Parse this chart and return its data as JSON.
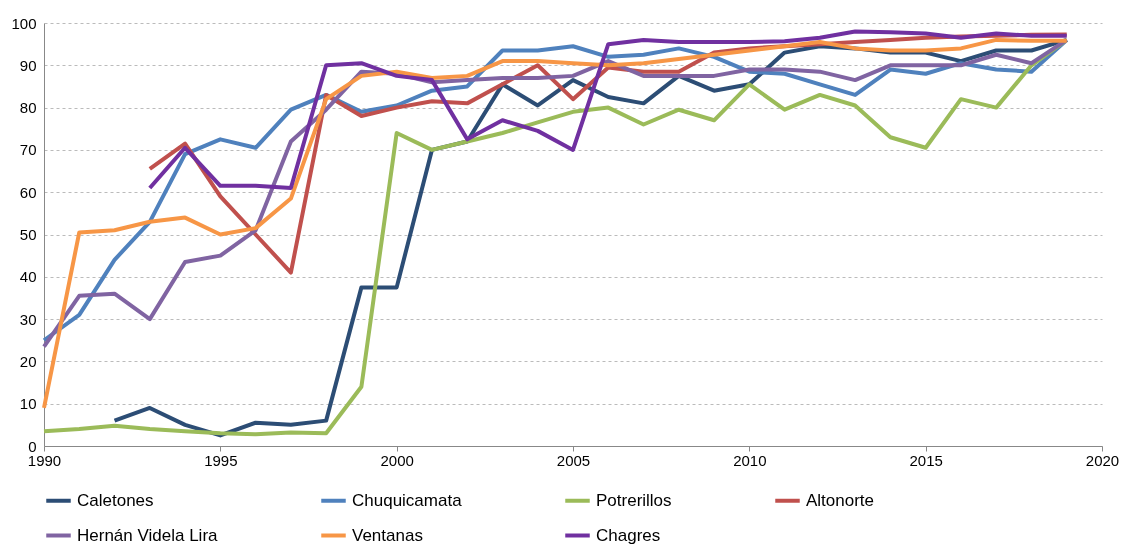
{
  "chart_data": {
    "type": "line",
    "x": [
      1990,
      1991,
      1992,
      1993,
      1994,
      1995,
      1996,
      1997,
      1998,
      1999,
      2000,
      2001,
      2002,
      2003,
      2004,
      2005,
      2006,
      2007,
      2008,
      2009,
      2010,
      2011,
      2012,
      2013,
      2014,
      2015,
      2016,
      2017,
      2018,
      2019
    ],
    "series": [
      {
        "name": "Caletones",
        "color": "#2c4d75",
        "values": [
          null,
          null,
          6,
          9,
          5,
          2.5,
          5.5,
          5,
          6,
          37.5,
          37.5,
          70,
          72,
          85.5,
          80.5,
          86.5,
          82.5,
          81,
          87.5,
          84,
          85.5,
          93,
          94.5,
          94,
          93,
          93,
          91,
          93.5,
          93.5,
          96
        ]
      },
      {
        "name": "Chuquicamata",
        "color": "#4f81bd",
        "values": [
          25,
          31,
          44,
          53,
          69,
          72.5,
          70.5,
          79.5,
          83,
          79,
          80.5,
          84,
          85,
          93.5,
          93.5,
          94.5,
          92,
          92.5,
          94,
          92,
          88.5,
          88,
          85.5,
          83,
          89,
          88,
          90.5,
          89,
          88.5,
          96
        ]
      },
      {
        "name": "Potrerillos",
        "color": "#9bbb59",
        "values": [
          3.5,
          4,
          4.8,
          4,
          3.5,
          3,
          2.8,
          3.2,
          3,
          14,
          74,
          70,
          72,
          74,
          76.5,
          79,
          80,
          76,
          79.5,
          77,
          85.5,
          79.5,
          83,
          80.5,
          73,
          70.5,
          82,
          80,
          90,
          96
        ]
      },
      {
        "name": "Altonorte",
        "color": "#c0504d",
        "values": [
          null,
          null,
          null,
          65.5,
          71.5,
          59,
          50,
          41,
          83,
          78,
          80,
          81.5,
          81,
          85.5,
          90,
          82,
          89.5,
          88.5,
          88.5,
          93,
          94,
          94.5,
          95,
          95.5,
          96,
          96.5,
          96.8,
          97,
          97.2,
          97.3
        ]
      },
      {
        "name": "Hernán Videla Lira",
        "color": "#8064a2",
        "values": [
          23.5,
          35.5,
          36,
          30,
          43.5,
          45,
          51,
          72,
          79.5,
          88.5,
          88,
          86,
          86.5,
          87,
          87,
          87.5,
          91,
          87.5,
          87.5,
          87.5,
          89,
          89,
          88.5,
          86.5,
          90,
          90,
          90,
          92.5,
          90.5,
          96
        ]
      },
      {
        "name": "Ventanas",
        "color": "#f79646",
        "values": [
          9,
          50.5,
          51,
          53,
          54,
          50,
          51.5,
          58.5,
          82,
          87.5,
          88.5,
          87,
          87.5,
          91,
          91,
          90.5,
          90,
          90.5,
          91.5,
          92.5,
          93.5,
          94.5,
          95.5,
          94,
          93.5,
          93.5,
          94,
          96,
          95.8,
          95.8
        ]
      },
      {
        "name": "Chagres",
        "color": "#7030a0",
        "values": [
          null,
          null,
          null,
          61,
          70.5,
          61.5,
          61.5,
          61,
          90,
          90.5,
          87.5,
          86.5,
          72.5,
          77,
          74.5,
          70,
          95,
          96,
          95.5,
          95.5,
          95.5,
          95.7,
          96.5,
          98,
          97.8,
          97.5,
          96.5,
          97.5,
          97,
          97
        ]
      }
    ],
    "xlim": [
      1990,
      2020
    ],
    "xticks": [
      1990,
      1995,
      2000,
      2005,
      2010,
      2015,
      2020
    ],
    "ylim": [
      0,
      100
    ],
    "yticks": [
      0,
      10,
      20,
      30,
      40,
      50,
      60,
      70,
      80,
      90,
      100
    ],
    "grid": "y",
    "legend": "bottom",
    "line_style": "solid"
  }
}
